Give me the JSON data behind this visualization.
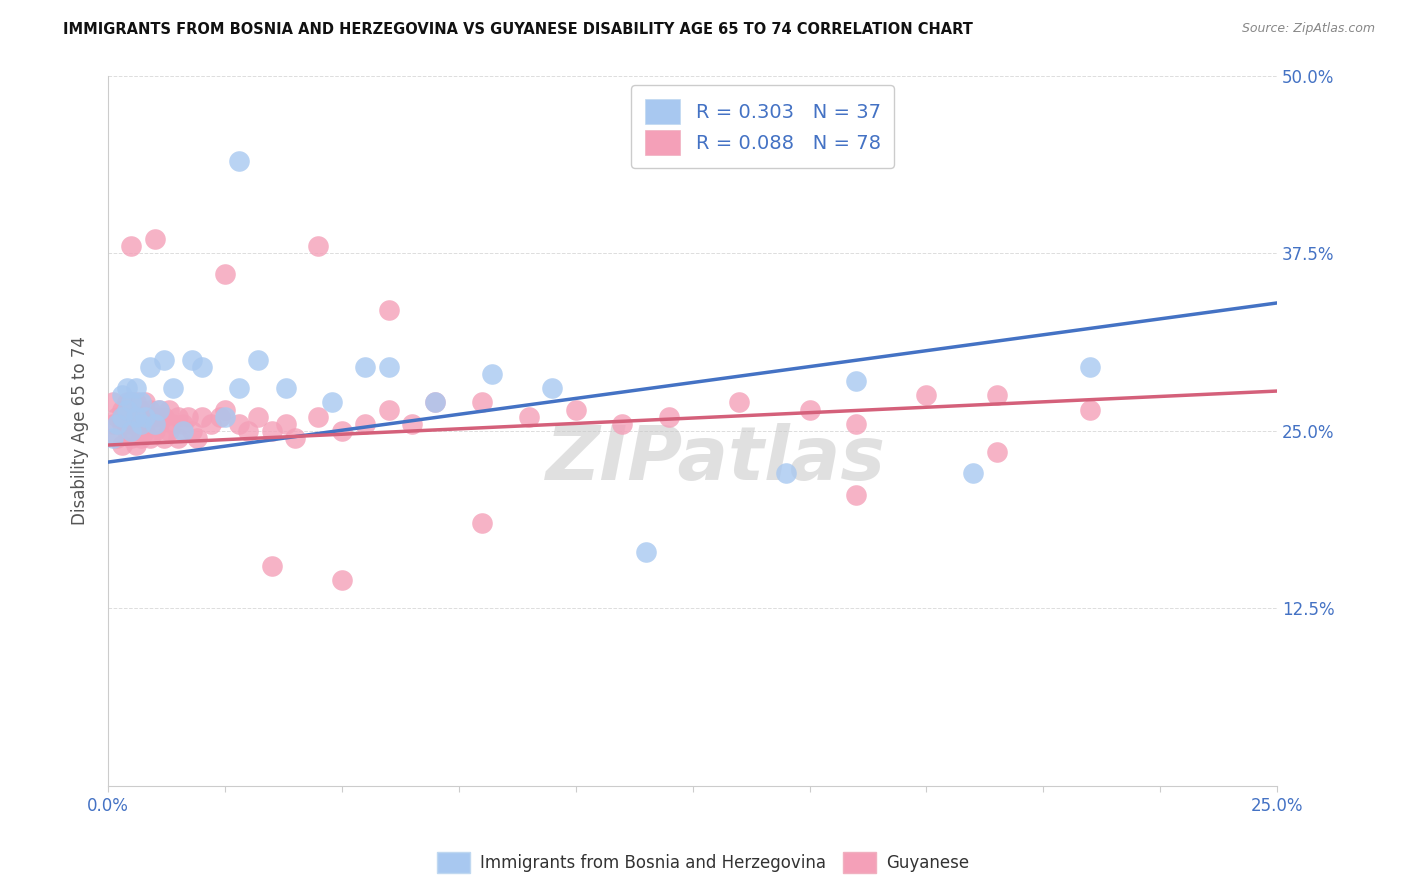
{
  "title": "IMMIGRANTS FROM BOSNIA AND HERZEGOVINA VS GUYANESE DISABILITY AGE 65 TO 74 CORRELATION CHART",
  "source": "Source: ZipAtlas.com",
  "ylabel": "Disability Age 65 to 74",
  "xlim": [
    0.0,
    0.25
  ],
  "ylim": [
    0.0,
    0.5
  ],
  "blue_scatter_color": "#a8c8f0",
  "pink_scatter_color": "#f4a0b8",
  "blue_line_color": "#4472c4",
  "pink_line_color": "#d4607a",
  "watermark": "ZIPatlas",
  "legend1_text": "R = 0.303   N = 37",
  "legend2_text": "R = 0.088   N = 78",
  "bottom_legend1": "Immigrants from Bosnia and Herzegovina",
  "bottom_legend2": "Guyanese",
  "bosnia_x": [
    0.001,
    0.002,
    0.003,
    0.003,
    0.004,
    0.004,
    0.005,
    0.005,
    0.006,
    0.006,
    0.007,
    0.007,
    0.008,
    0.009,
    0.01,
    0.011,
    0.012,
    0.014,
    0.016,
    0.018,
    0.02,
    0.025,
    0.028,
    0.032,
    0.038,
    0.048,
    0.055,
    0.06,
    0.07,
    0.082,
    0.095,
    0.115,
    0.145,
    0.16,
    0.185,
    0.21,
    0.028
  ],
  "bosnia_y": [
    0.245,
    0.255,
    0.26,
    0.275,
    0.265,
    0.28,
    0.25,
    0.27,
    0.26,
    0.28,
    0.255,
    0.27,
    0.26,
    0.295,
    0.255,
    0.265,
    0.3,
    0.28,
    0.25,
    0.3,
    0.295,
    0.26,
    0.28,
    0.3,
    0.28,
    0.27,
    0.295,
    0.295,
    0.27,
    0.29,
    0.28,
    0.165,
    0.22,
    0.285,
    0.22,
    0.295,
    0.44
  ],
  "guyanese_x": [
    0.001,
    0.001,
    0.002,
    0.002,
    0.003,
    0.003,
    0.003,
    0.004,
    0.004,
    0.004,
    0.005,
    0.005,
    0.005,
    0.005,
    0.006,
    0.006,
    0.006,
    0.006,
    0.007,
    0.007,
    0.007,
    0.008,
    0.008,
    0.008,
    0.009,
    0.009,
    0.01,
    0.01,
    0.011,
    0.011,
    0.012,
    0.012,
    0.013,
    0.013,
    0.014,
    0.015,
    0.015,
    0.016,
    0.017,
    0.018,
    0.019,
    0.02,
    0.022,
    0.024,
    0.025,
    0.028,
    0.03,
    0.032,
    0.035,
    0.038,
    0.04,
    0.045,
    0.05,
    0.055,
    0.06,
    0.065,
    0.07,
    0.08,
    0.09,
    0.1,
    0.11,
    0.12,
    0.135,
    0.15,
    0.16,
    0.175,
    0.19,
    0.21,
    0.035,
    0.05,
    0.06,
    0.08,
    0.16,
    0.19,
    0.045,
    0.025,
    0.01,
    0.005
  ],
  "guyanese_y": [
    0.255,
    0.27,
    0.245,
    0.26,
    0.24,
    0.255,
    0.265,
    0.25,
    0.26,
    0.27,
    0.245,
    0.255,
    0.265,
    0.27,
    0.24,
    0.255,
    0.26,
    0.27,
    0.245,
    0.255,
    0.265,
    0.25,
    0.26,
    0.27,
    0.245,
    0.265,
    0.25,
    0.26,
    0.255,
    0.265,
    0.245,
    0.26,
    0.25,
    0.265,
    0.255,
    0.245,
    0.26,
    0.255,
    0.26,
    0.25,
    0.245,
    0.26,
    0.255,
    0.26,
    0.265,
    0.255,
    0.25,
    0.26,
    0.25,
    0.255,
    0.245,
    0.26,
    0.25,
    0.255,
    0.265,
    0.255,
    0.27,
    0.27,
    0.26,
    0.265,
    0.255,
    0.26,
    0.27,
    0.265,
    0.255,
    0.275,
    0.275,
    0.265,
    0.155,
    0.145,
    0.335,
    0.185,
    0.205,
    0.235,
    0.38,
    0.36,
    0.385,
    0.38
  ],
  "blue_line_x0": 0.0,
  "blue_line_y0": 0.228,
  "blue_line_x1": 0.25,
  "blue_line_y1": 0.34,
  "pink_line_x0": 0.0,
  "pink_line_y0": 0.24,
  "pink_line_x1": 0.25,
  "pink_line_y1": 0.278
}
